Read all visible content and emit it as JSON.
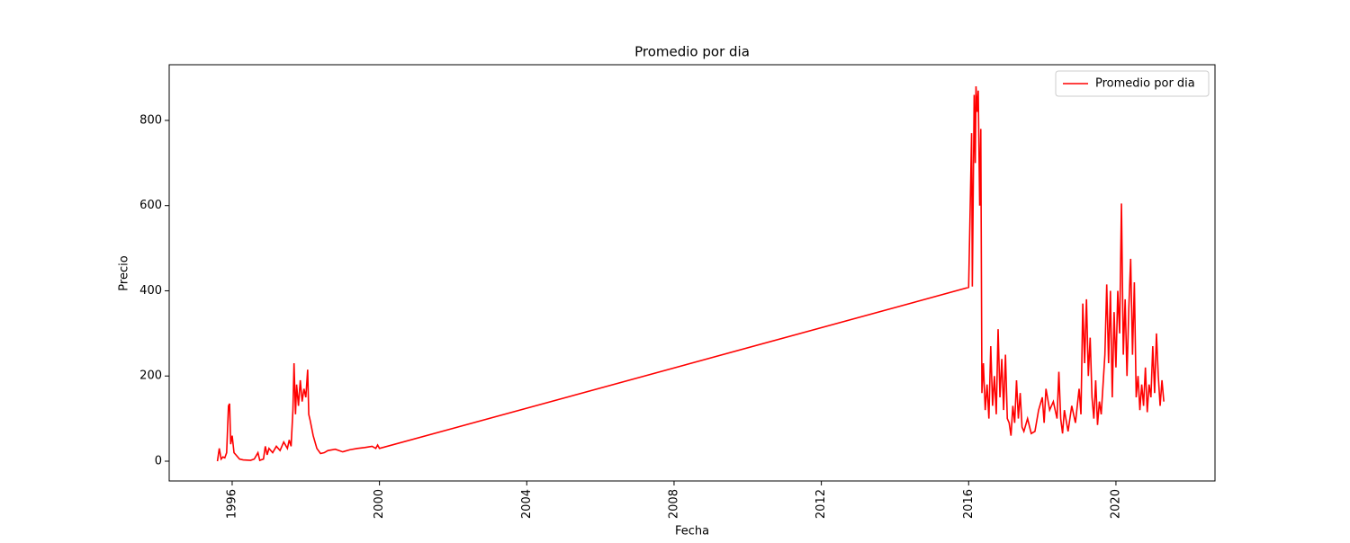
{
  "chart_data": {
    "type": "line",
    "title": "Promedio por dia",
    "xlabel": "Fecha",
    "ylabel": "Precio",
    "x": [
      1995.6,
      1995.65,
      1995.7,
      1995.75,
      1995.8,
      1995.85,
      1995.9,
      1995.93,
      1995.96,
      1996.0,
      1996.05,
      1996.1,
      1996.2,
      1996.3,
      1996.5,
      1996.6,
      1996.7,
      1996.75,
      1996.85,
      1996.9,
      1996.95,
      1997.0,
      1997.1,
      1997.2,
      1997.3,
      1997.4,
      1997.5,
      1997.55,
      1997.6,
      1997.65,
      1997.68,
      1997.72,
      1997.75,
      1997.8,
      1997.85,
      1997.9,
      1997.95,
      1998.0,
      1998.05,
      1998.08,
      1998.12,
      1998.2,
      1998.3,
      1998.4,
      1998.5,
      1998.6,
      1998.8,
      1999.0,
      1999.2,
      1999.4,
      1999.6,
      1999.8,
      1999.9,
      1999.95,
      2000.0,
      2016.0,
      2016.05,
      2016.08,
      2016.1,
      2016.15,
      2016.18,
      2016.2,
      2016.23,
      2016.26,
      2016.3,
      2016.33,
      2016.36,
      2016.4,
      2016.45,
      2016.5,
      2016.55,
      2016.6,
      2016.65,
      2016.7,
      2016.75,
      2016.8,
      2016.85,
      2016.9,
      2016.95,
      2017.0,
      2017.05,
      2017.1,
      2017.15,
      2017.2,
      2017.25,
      2017.3,
      2017.35,
      2017.4,
      2017.45,
      2017.5,
      2017.6,
      2017.7,
      2017.8,
      2017.9,
      2018.0,
      2018.05,
      2018.1,
      2018.2,
      2018.3,
      2018.4,
      2018.45,
      2018.5,
      2018.55,
      2018.6,
      2018.7,
      2018.8,
      2018.9,
      2019.0,
      2019.05,
      2019.1,
      2019.15,
      2019.2,
      2019.25,
      2019.3,
      2019.35,
      2019.4,
      2019.45,
      2019.5,
      2019.55,
      2019.6,
      2019.7,
      2019.75,
      2019.8,
      2019.85,
      2019.9,
      2019.95,
      2020.0,
      2020.05,
      2020.1,
      2020.15,
      2020.2,
      2020.25,
      2020.3,
      2020.35,
      2020.4,
      2020.45,
      2020.5,
      2020.55,
      2020.6,
      2020.65,
      2020.7,
      2020.75,
      2020.8,
      2020.85,
      2020.9,
      2020.95,
      2021.0,
      2021.05,
      2021.1,
      2021.15,
      2021.2,
      2021.25,
      2021.3
    ],
    "series": [
      {
        "name": "Promedio por dia",
        "color": "#ff0000",
        "values": [
          0,
          30,
          5,
          10,
          8,
          20,
          130,
          135,
          40,
          60,
          20,
          15,
          5,
          3,
          2,
          5,
          20,
          2,
          5,
          35,
          15,
          30,
          20,
          35,
          25,
          45,
          30,
          50,
          35,
          120,
          230,
          110,
          180,
          130,
          190,
          140,
          170,
          150,
          215,
          110,
          95,
          60,
          30,
          18,
          20,
          25,
          28,
          22,
          27,
          30,
          32,
          35,
          30,
          38,
          30,
          408,
          630,
          770,
          410,
          860,
          700,
          880,
          820,
          870,
          600,
          780,
          160,
          230,
          120,
          180,
          100,
          270,
          130,
          200,
          110,
          310,
          150,
          240,
          120,
          250,
          100,
          90,
          60,
          130,
          90,
          190,
          100,
          160,
          80,
          70,
          100,
          65,
          70,
          120,
          150,
          90,
          170,
          120,
          140,
          100,
          210,
          100,
          65,
          120,
          70,
          130,
          90,
          170,
          110,
          370,
          230,
          380,
          200,
          290,
          150,
          100,
          190,
          85,
          140,
          110,
          250,
          415,
          230,
          400,
          150,
          350,
          220,
          400,
          300,
          605,
          250,
          380,
          200,
          360,
          475,
          250,
          420,
          150,
          200,
          120,
          180,
          130,
          220,
          115,
          180,
          150,
          270,
          160,
          300,
          200,
          130,
          190,
          140
        ]
      }
    ],
    "xlim": [
      1994.29,
      2022.69
    ],
    "xticks": [
      1996,
      2000,
      2004,
      2008,
      2012,
      2016,
      2020
    ],
    "ylim": [
      -46.4,
      930.7
    ],
    "yticks": [
      0,
      200,
      400,
      600,
      800
    ],
    "legend": "upper right"
  }
}
